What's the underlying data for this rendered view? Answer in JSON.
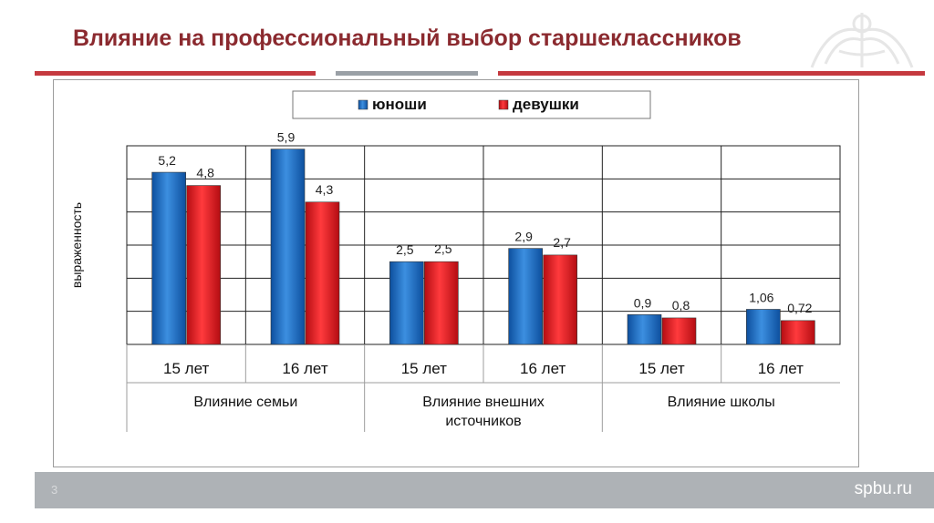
{
  "slide": {
    "title": "Влияние на профессиональный выбор старшеклассников",
    "page_number": "3",
    "site": "spbu.ru"
  },
  "colors": {
    "title": "#8b2a2f",
    "accent_rule": "#c5393f",
    "grey_rule": "#9aa0a6",
    "footer": "#aeb2b6",
    "series_blue": "#1f6fc4",
    "series_red": "#e0181d"
  },
  "chart_data": {
    "type": "bar",
    "title": "",
    "ylabel": "выраженность",
    "xlabel": "",
    "ylim": [
      0,
      6
    ],
    "grid": true,
    "legend_position": "top",
    "categories": [
      "15 лет",
      "16 лет",
      "15 лет",
      "16 лет",
      "15 лет",
      "16 лет"
    ],
    "groups": [
      {
        "label": "Влияние семьи",
        "span": 2
      },
      {
        "label": "Влияние внешних источников",
        "span": 2
      },
      {
        "label": "Влияние школы",
        "span": 2
      }
    ],
    "series": [
      {
        "name": "юноши",
        "color": "#1f6fc4",
        "values": [
          5.2,
          5.9,
          2.5,
          2.9,
          0.9,
          1.06
        ],
        "labels": [
          "5,2",
          "5,9",
          "2,5",
          "2,9",
          "0,9",
          "1,06"
        ]
      },
      {
        "name": "девушки",
        "color": "#e0181d",
        "values": [
          4.8,
          4.3,
          2.5,
          2.7,
          0.8,
          0.72
        ],
        "labels": [
          "4,8",
          "4,3",
          "2,5",
          "2,7",
          "0,8",
          "0,72"
        ]
      }
    ]
  }
}
